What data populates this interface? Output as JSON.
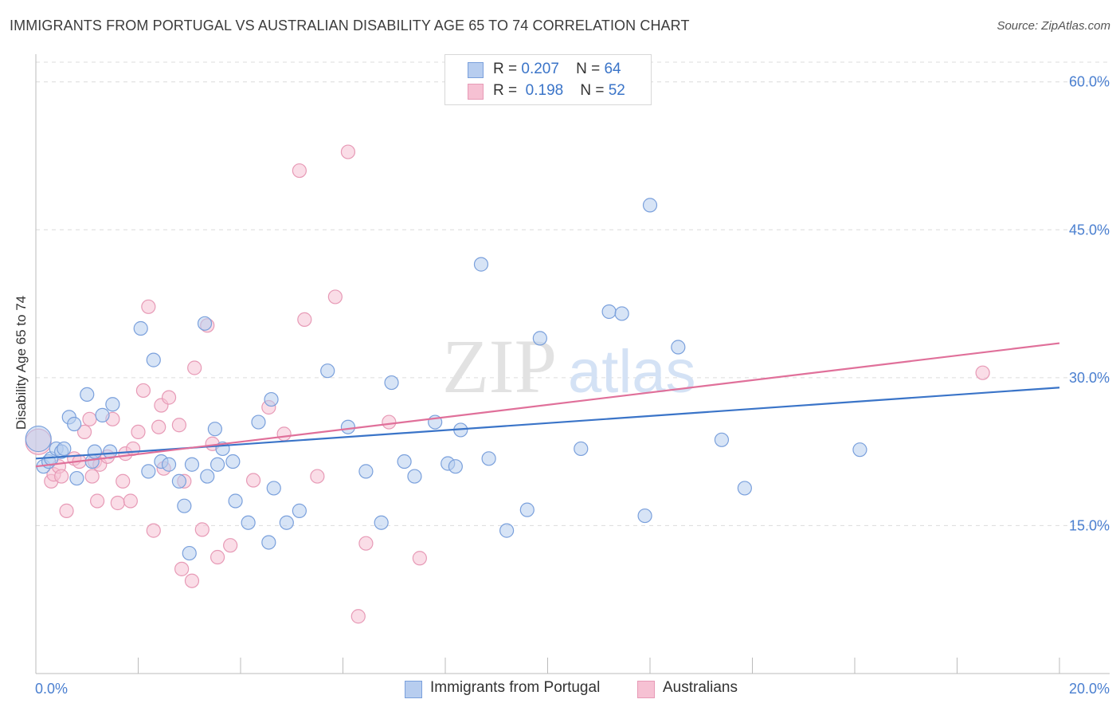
{
  "title": "IMMIGRANTS FROM PORTUGAL VS AUSTRALIAN DISABILITY AGE 65 TO 74 CORRELATION CHART",
  "source": "Source: ZipAtlas.com",
  "watermark": {
    "zip": "ZIP",
    "atlas": "atlas"
  },
  "legend": {
    "rows": [
      {
        "r_label": "R =",
        "r_value": "0.207",
        "n_label": "N =",
        "n_value": "64"
      },
      {
        "r_label": "R =",
        "r_value": "0.198",
        "n_label": "N =",
        "n_value": "52"
      }
    ]
  },
  "bottom_legend": {
    "series1": "Immigrants from Portugal",
    "series2": "Australians"
  },
  "colors": {
    "blue": "#4a7fd0",
    "blue_fill": "#b7cdef",
    "pink": "#e0709a",
    "pink_fill": "#f6c1d3",
    "grid": "#dcdcdc"
  },
  "chart_data": {
    "type": "scatter",
    "title": "IMMIGRANTS FROM PORTUGAL VS AUSTRALIAN DISABILITY AGE 65 TO 74 CORRELATION CHART",
    "xlabel": "",
    "ylabel": "Disability Age 65 to 74",
    "xlim": [
      0,
      20
    ],
    "ylim": [
      0,
      62
    ],
    "x_tick_labels": [
      "0.0%",
      "20.0%"
    ],
    "y_ticks": [
      15,
      30,
      45,
      60
    ],
    "y_tick_labels": [
      "15.0%",
      "30.0%",
      "45.0%",
      "60.0%"
    ],
    "grid": true,
    "series": [
      {
        "name": "Immigrants from Portugal",
        "color": "#4a7fd0",
        "trend": {
          "x": [
            0,
            20
          ],
          "y": [
            21.8,
            29.0
          ]
        },
        "points": [
          [
            0.05,
            23.8
          ],
          [
            0.15,
            21.0
          ],
          [
            0.25,
            21.5
          ],
          [
            0.3,
            21.8
          ],
          [
            0.4,
            22.8
          ],
          [
            0.5,
            22.5
          ],
          [
            0.55,
            22.8
          ],
          [
            0.65,
            26.0
          ],
          [
            0.75,
            25.3
          ],
          [
            0.8,
            19.8
          ],
          [
            1.0,
            28.3
          ],
          [
            1.1,
            21.5
          ],
          [
            1.15,
            22.5
          ],
          [
            1.3,
            26.2
          ],
          [
            1.45,
            22.5
          ],
          [
            1.5,
            27.3
          ],
          [
            2.05,
            35.0
          ],
          [
            2.2,
            20.5
          ],
          [
            2.3,
            31.8
          ],
          [
            2.45,
            21.5
          ],
          [
            2.6,
            21.2
          ],
          [
            2.8,
            19.5
          ],
          [
            2.9,
            17.0
          ],
          [
            3.0,
            12.2
          ],
          [
            3.05,
            21.2
          ],
          [
            3.3,
            35.5
          ],
          [
            3.35,
            20.0
          ],
          [
            3.5,
            24.8
          ],
          [
            3.55,
            21.2
          ],
          [
            3.65,
            22.8
          ],
          [
            3.85,
            21.5
          ],
          [
            3.9,
            17.5
          ],
          [
            4.15,
            15.3
          ],
          [
            4.35,
            25.5
          ],
          [
            4.55,
            13.3
          ],
          [
            4.6,
            27.8
          ],
          [
            4.65,
            18.8
          ],
          [
            4.9,
            15.3
          ],
          [
            5.15,
            16.5
          ],
          [
            5.7,
            30.7
          ],
          [
            6.1,
            25.0
          ],
          [
            6.45,
            20.5
          ],
          [
            6.75,
            15.3
          ],
          [
            6.95,
            29.5
          ],
          [
            7.2,
            21.5
          ],
          [
            7.4,
            20.0
          ],
          [
            7.8,
            25.5
          ],
          [
            8.05,
            21.3
          ],
          [
            8.2,
            21.0
          ],
          [
            8.3,
            24.7
          ],
          [
            8.7,
            41.5
          ],
          [
            8.85,
            21.8
          ],
          [
            9.2,
            14.5
          ],
          [
            9.6,
            16.6
          ],
          [
            9.85,
            34.0
          ],
          [
            10.65,
            22.8
          ],
          [
            11.2,
            36.7
          ],
          [
            11.45,
            36.5
          ],
          [
            11.9,
            16.0
          ],
          [
            12.0,
            47.5
          ],
          [
            12.55,
            33.1
          ],
          [
            13.4,
            23.7
          ],
          [
            13.85,
            18.8
          ],
          [
            16.1,
            22.7
          ]
        ]
      },
      {
        "name": "Australians",
        "color": "#e0709a",
        "trend": {
          "x": [
            0,
            20
          ],
          "y": [
            21.0,
            33.5
          ]
        },
        "points": [
          [
            0.05,
            23.5
          ],
          [
            0.3,
            19.5
          ],
          [
            0.35,
            20.2
          ],
          [
            0.45,
            21.0
          ],
          [
            0.5,
            20.0
          ],
          [
            0.6,
            16.5
          ],
          [
            0.75,
            21.8
          ],
          [
            0.85,
            21.5
          ],
          [
            0.95,
            24.5
          ],
          [
            1.05,
            25.8
          ],
          [
            1.1,
            20.0
          ],
          [
            1.15,
            21.5
          ],
          [
            1.2,
            17.5
          ],
          [
            1.25,
            21.2
          ],
          [
            1.4,
            22.0
          ],
          [
            1.5,
            25.8
          ],
          [
            1.6,
            17.3
          ],
          [
            1.7,
            19.5
          ],
          [
            1.75,
            22.3
          ],
          [
            1.85,
            17.5
          ],
          [
            1.9,
            22.8
          ],
          [
            2.0,
            24.5
          ],
          [
            2.1,
            28.7
          ],
          [
            2.2,
            37.2
          ],
          [
            2.3,
            14.5
          ],
          [
            2.4,
            25.0
          ],
          [
            2.45,
            27.2
          ],
          [
            2.5,
            20.8
          ],
          [
            2.6,
            28.0
          ],
          [
            2.8,
            25.2
          ],
          [
            2.85,
            10.6
          ],
          [
            2.9,
            19.5
          ],
          [
            3.05,
            9.4
          ],
          [
            3.1,
            31.0
          ],
          [
            3.25,
            14.6
          ],
          [
            3.35,
            35.3
          ],
          [
            3.45,
            23.3
          ],
          [
            3.55,
            11.8
          ],
          [
            3.8,
            13.0
          ],
          [
            4.25,
            19.6
          ],
          [
            4.55,
            27.0
          ],
          [
            4.85,
            24.3
          ],
          [
            5.15,
            51.0
          ],
          [
            5.25,
            35.9
          ],
          [
            5.5,
            20.0
          ],
          [
            5.85,
            38.2
          ],
          [
            6.1,
            52.9
          ],
          [
            6.3,
            5.8
          ],
          [
            6.45,
            13.2
          ],
          [
            6.9,
            25.5
          ],
          [
            7.5,
            11.7
          ],
          [
            18.5,
            30.5
          ]
        ]
      }
    ]
  }
}
